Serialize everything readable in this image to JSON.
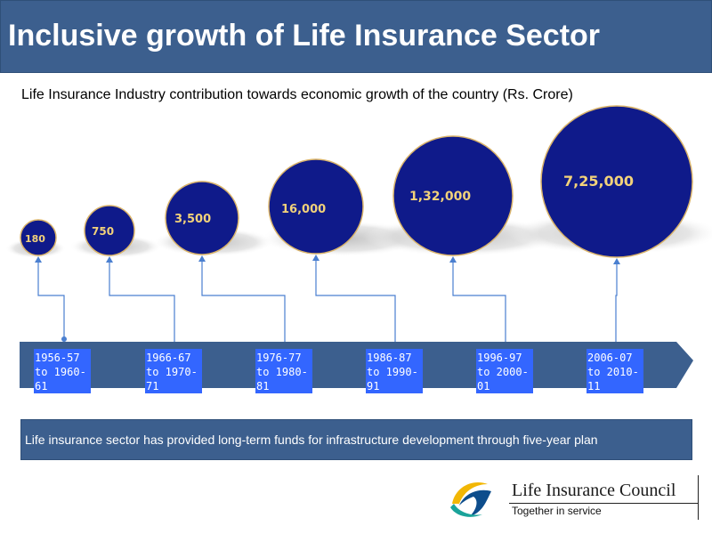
{
  "slide": {
    "title": "Inclusive growth of Life Insurance Sector",
    "subtitle": "Life Insurance Industry contribution towards economic growth of the country (Rs. Crore)"
  },
  "colors": {
    "title_bg": "#3c5f8e",
    "bubble_fill": "#0f1a8a",
    "bubble_outline": "#d9b36a",
    "bubble_label": "#f2d27a",
    "arrow_band": "#3c5f8e",
    "period_box": "#3366ff",
    "connector": "#4a7fd0"
  },
  "timeline": [
    {
      "period": "1956-57 to 1960-61",
      "period_lines": [
        "1956-57",
        "to 1960-",
        "61"
      ],
      "contribution": "180",
      "value": 180
    },
    {
      "period": "1966-67 to 1970-71",
      "period_lines": [
        "1966-67",
        "to 1970-",
        "71"
      ],
      "contribution": "750",
      "value": 750
    },
    {
      "period": "1976-77 to 1980-81",
      "period_lines": [
        "1976-77",
        "to 1980-",
        "81"
      ],
      "contribution": "3,500",
      "value": 3500
    },
    {
      "period": "1986-87 to 1990-91",
      "period_lines": [
        "1986-87",
        "to 1990-",
        "91"
      ],
      "contribution": "16,000",
      "value": 16000
    },
    {
      "period": "1996-97 to 2000-01",
      "period_lines": [
        "1996-97",
        "to 2000-",
        "01"
      ],
      "contribution": "1,32,000",
      "value": 132000
    },
    {
      "period": "2006-07 to 2010-11",
      "period_lines": [
        "2006-07",
        "to 2010-",
        "11"
      ],
      "contribution": "7,25,000",
      "value": 725000
    }
  ],
  "note": "Life insurance sector has provided long-term funds for infrastructure development through five-year plan",
  "logo": {
    "name": "Life Insurance Council",
    "tagline": "Together in service",
    "mark_icon": "council-swirl-logo-icon"
  }
}
